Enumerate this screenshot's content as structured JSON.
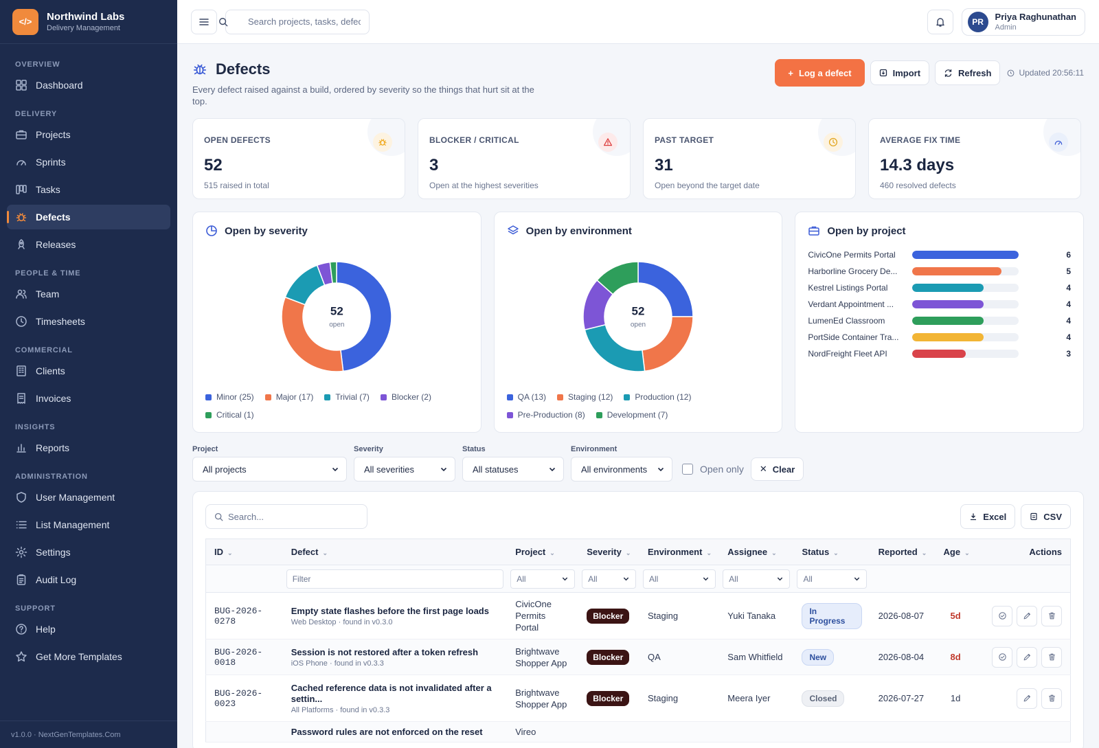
{
  "brand": {
    "name": "Northwind Labs",
    "subtitle": "Delivery Management",
    "logo_glyph": "</>"
  },
  "sidebar": {
    "sections": [
      {
        "label": "OVERVIEW",
        "items": [
          {
            "label": "Dashboard",
            "icon": "dashboard-icon"
          }
        ]
      },
      {
        "label": "DELIVERY",
        "items": [
          {
            "label": "Projects",
            "icon": "briefcase-icon"
          },
          {
            "label": "Sprints",
            "icon": "gauge-icon"
          },
          {
            "label": "Tasks",
            "icon": "board-icon"
          },
          {
            "label": "Defects",
            "icon": "bug-icon",
            "active": true
          },
          {
            "label": "Releases",
            "icon": "rocket-icon"
          }
        ]
      },
      {
        "label": "PEOPLE & TIME",
        "items": [
          {
            "label": "Team",
            "icon": "users-icon"
          },
          {
            "label": "Timesheets",
            "icon": "clock-icon"
          }
        ]
      },
      {
        "label": "COMMERCIAL",
        "items": [
          {
            "label": "Clients",
            "icon": "building-icon"
          },
          {
            "label": "Invoices",
            "icon": "receipt-icon"
          }
        ]
      },
      {
        "label": "INSIGHTS",
        "items": [
          {
            "label": "Reports",
            "icon": "bar-chart-icon"
          }
        ]
      },
      {
        "label": "ADMINISTRATION",
        "items": [
          {
            "label": "User Management",
            "icon": "shield-icon"
          },
          {
            "label": "List Management",
            "icon": "list-icon"
          },
          {
            "label": "Settings",
            "icon": "gear-icon"
          },
          {
            "label": "Audit Log",
            "icon": "clipboard-icon"
          }
        ]
      },
      {
        "label": "SUPPORT",
        "items": [
          {
            "label": "Help",
            "icon": "help-icon"
          },
          {
            "label": "Get More Templates",
            "icon": "star-icon"
          }
        ]
      }
    ],
    "footer": "v1.0.0 · NextGenTemplates.Com"
  },
  "topbar": {
    "search_placeholder": "Search projects, tasks, defects…",
    "user": {
      "initials": "PR",
      "name": "Priya Raghunathan",
      "role": "Admin"
    }
  },
  "page": {
    "title": "Defects",
    "description": "Every defect raised against a build, ordered by severity so the things that hurt sit at the top.",
    "actions": {
      "log": "Log a defect",
      "import": "Import",
      "refresh": "Refresh"
    },
    "updated": "Updated 20:56:11"
  },
  "kpis": [
    {
      "label": "OPEN DEFECTS",
      "value": "52",
      "sub": "515 raised in total",
      "icon": "bug-icon",
      "color": "#f0a91e",
      "bg": "#fdf3e1"
    },
    {
      "label": "BLOCKER / CRITICAL",
      "value": "3",
      "sub": "Open at the highest severities",
      "icon": "warning-icon",
      "color": "#dc3b3b",
      "bg": "#fdeaea"
    },
    {
      "label": "PAST TARGET",
      "value": "31",
      "sub": "Open beyond the target date",
      "icon": "clock-icon",
      "color": "#e0a31a",
      "bg": "#fdf3e1"
    },
    {
      "label": "AVERAGE FIX TIME",
      "value": "14.3 days",
      "sub": "460 resolved defects",
      "icon": "speedometer-icon",
      "color": "#3b5bd6",
      "bg": "#eaf0fb"
    }
  ],
  "chart_data": [
    {
      "type": "pie",
      "title": "Open by severity",
      "center_value": "52",
      "center_caption": "open",
      "categories": [
        "Minor",
        "Major",
        "Trivial",
        "Blocker",
        "Critical"
      ],
      "values": [
        25,
        17,
        7,
        2,
        1
      ],
      "legend_labels": [
        "Minor (25)",
        "Major (17)",
        "Trivial (7)",
        "Blocker (2)",
        "Critical (1)"
      ],
      "colors": [
        "#3b63dd",
        "#f0764a",
        "#1b9bb3",
        "#7d55d6",
        "#2e9e5b"
      ]
    },
    {
      "type": "pie",
      "title": "Open by environment",
      "center_value": "52",
      "center_caption": "open",
      "categories": [
        "QA",
        "Staging",
        "Production",
        "Pre-Production",
        "Development"
      ],
      "values": [
        13,
        12,
        12,
        8,
        7
      ],
      "legend_labels": [
        "QA (13)",
        "Staging (12)",
        "Production (12)",
        "Pre-Production (8)",
        "Development (7)"
      ],
      "colors": [
        "#3b63dd",
        "#f0764a",
        "#1b9bb3",
        "#7d55d6",
        "#2e9e5b"
      ]
    },
    {
      "type": "bar",
      "title": "Open by project",
      "categories": [
        "CivicOne Permits Portal",
        "Harborline Grocery De...",
        "Kestrel Listings Portal",
        "Verdant Appointment ...",
        "LumenEd Classroom",
        "PortSide Container Tra...",
        "NordFreight Fleet API"
      ],
      "values": [
        6,
        5,
        4,
        4,
        4,
        4,
        3
      ],
      "xlim": [
        0,
        6
      ],
      "colors": [
        "#3b63dd",
        "#f0764a",
        "#1b9bb3",
        "#7d55d6",
        "#2e9e5b",
        "#f2b535",
        "#d9434a"
      ]
    }
  ],
  "filters": {
    "project": {
      "label": "Project",
      "value": "All projects"
    },
    "severity": {
      "label": "Severity",
      "value": "All severities"
    },
    "status": {
      "label": "Status",
      "value": "All statuses"
    },
    "environment": {
      "label": "Environment",
      "value": "All environments"
    },
    "open_only": "Open only",
    "clear": "Clear"
  },
  "table": {
    "search_placeholder": "Search...",
    "exports": {
      "excel": "Excel",
      "csv": "CSV"
    },
    "columns": [
      "ID",
      "Defect",
      "Project",
      "Severity",
      "Environment",
      "Assignee",
      "Status",
      "Reported",
      "Age",
      "Actions"
    ],
    "filter_row": {
      "defect_placeholder": "Filter",
      "all": "All"
    },
    "rows": [
      {
        "id": "BUG-2026-0278",
        "title": "Empty state flashes before the first page loads",
        "meta": "Web Desktop · found in v0.3.0",
        "project": "CivicOne Permits Portal",
        "severity": "Blocker",
        "environment": "Staging",
        "assignee": "Yuki Tanaka",
        "status": "In Progress",
        "reported": "2026-08-07",
        "age": "5d",
        "age_overdue": true,
        "resolve": true
      },
      {
        "id": "BUG-2026-0018",
        "title": "Session is not restored after a token refresh",
        "meta": "iOS Phone · found in v0.3.3",
        "project": "Brightwave Shopper App",
        "severity": "Blocker",
        "environment": "QA",
        "assignee": "Sam Whitfield",
        "status": "New",
        "reported": "2026-08-04",
        "age": "8d",
        "age_overdue": true,
        "resolve": true
      },
      {
        "id": "BUG-2026-0023",
        "title": "Cached reference data is not invalidated after a settin...",
        "meta": "All Platforms · found in v0.3.3",
        "project": "Brightwave Shopper App",
        "severity": "Blocker",
        "environment": "Staging",
        "assignee": "Meera Iyer",
        "status": "Closed",
        "reported": "2026-07-27",
        "age": "1d",
        "age_overdue": false,
        "resolve": false
      },
      {
        "id": "",
        "title": "Password rules are not enforced on the reset",
        "meta": "",
        "project": "Vireo",
        "severity": "",
        "environment": "",
        "assignee": "",
        "status": "",
        "reported": "",
        "age": "",
        "age_overdue": false,
        "resolve": true
      }
    ]
  }
}
